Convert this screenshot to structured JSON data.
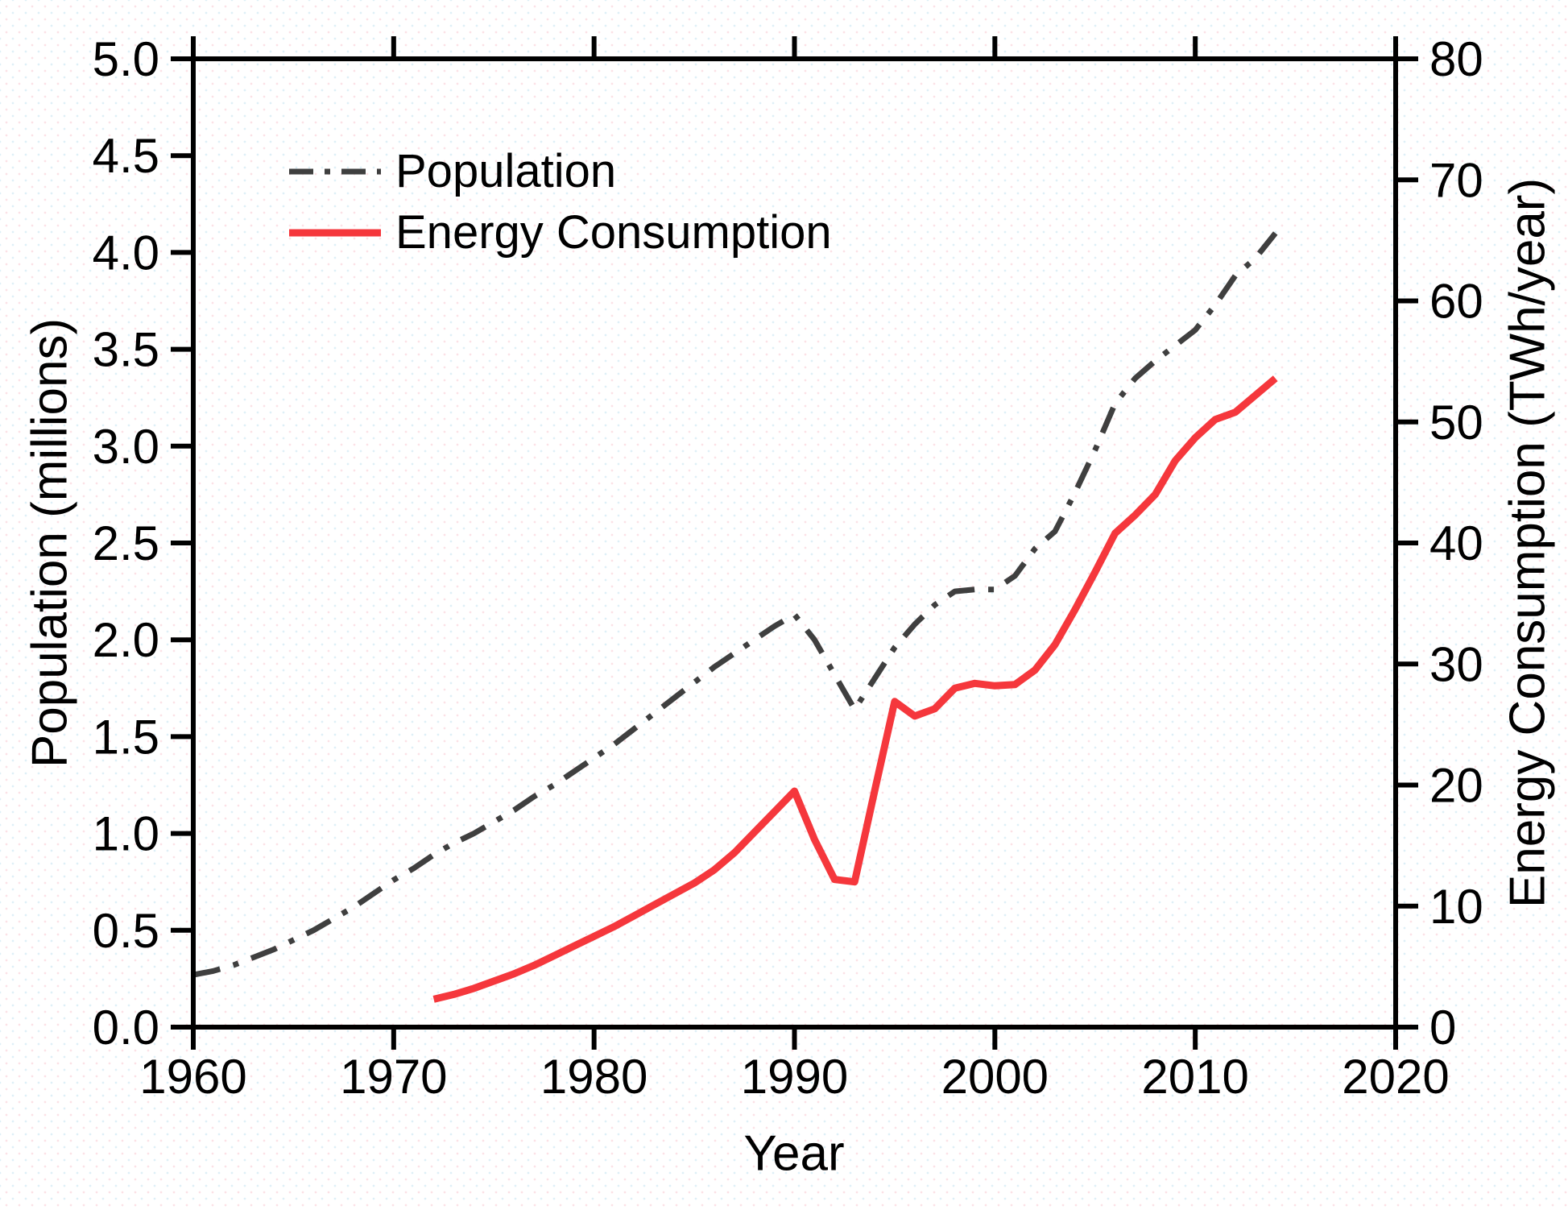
{
  "chart_data": {
    "type": "line",
    "title": "",
    "grid": false,
    "legend_position": "inside-top-left",
    "x_axis": {
      "title": "Year",
      "min": 1960,
      "max": 2020,
      "ticks": [
        {
          "v": 1960,
          "label": "1960"
        },
        {
          "v": 1970,
          "label": "1970"
        },
        {
          "v": 1980,
          "label": "1980"
        },
        {
          "v": 1990,
          "label": "1990"
        },
        {
          "v": 2000,
          "label": "2000"
        },
        {
          "v": 2010,
          "label": "2010"
        },
        {
          "v": 2020,
          "label": "2020"
        }
      ]
    },
    "left_axis": {
      "title": "Population (millions)",
      "min": 0,
      "max": 5,
      "ticks": [
        {
          "v": 0.0,
          "label": "0.0"
        },
        {
          "v": 0.5,
          "label": "0.5"
        },
        {
          "v": 1.0,
          "label": "1.0"
        },
        {
          "v": 1.5,
          "label": "1.5"
        },
        {
          "v": 2.0,
          "label": "2.0"
        },
        {
          "v": 2.5,
          "label": "2.5"
        },
        {
          "v": 3.0,
          "label": "3.0"
        },
        {
          "v": 3.5,
          "label": "3.5"
        },
        {
          "v": 4.0,
          "label": "4.0"
        },
        {
          "v": 4.5,
          "label": "4.5"
        },
        {
          "v": 5.0,
          "label": "5.0"
        }
      ]
    },
    "right_axis": {
      "title": "Energy Consumption (TWh/year)",
      "min": 0,
      "max": 80,
      "ticks": [
        {
          "v": 0,
          "label": "0"
        },
        {
          "v": 10,
          "label": "10"
        },
        {
          "v": 20,
          "label": "20"
        },
        {
          "v": 30,
          "label": "30"
        },
        {
          "v": 40,
          "label": "40"
        },
        {
          "v": 50,
          "label": "50"
        },
        {
          "v": 60,
          "label": "60"
        },
        {
          "v": 70,
          "label": "70"
        },
        {
          "v": 80,
          "label": "80"
        }
      ]
    },
    "series": [
      {
        "name": "Population",
        "axis": "left",
        "color": "#3f3f3f",
        "style": "dash-dot",
        "line_width": 7,
        "points": [
          [
            1960,
            0.27
          ],
          [
            1961,
            0.29
          ],
          [
            1962,
            0.32
          ],
          [
            1963,
            0.36
          ],
          [
            1964,
            0.4
          ],
          [
            1965,
            0.45
          ],
          [
            1966,
            0.5
          ],
          [
            1967,
            0.56
          ],
          [
            1968,
            0.62
          ],
          [
            1969,
            0.69
          ],
          [
            1970,
            0.76
          ],
          [
            1971,
            0.82
          ],
          [
            1972,
            0.89
          ],
          [
            1973,
            0.95
          ],
          [
            1974,
            1.0
          ],
          [
            1975,
            1.06
          ],
          [
            1976,
            1.12
          ],
          [
            1977,
            1.19
          ],
          [
            1978,
            1.25
          ],
          [
            1979,
            1.32
          ],
          [
            1980,
            1.39
          ],
          [
            1981,
            1.46
          ],
          [
            1982,
            1.54
          ],
          [
            1983,
            1.62
          ],
          [
            1984,
            1.7
          ],
          [
            1985,
            1.78
          ],
          [
            1986,
            1.86
          ],
          [
            1987,
            1.93
          ],
          [
            1988,
            2.0
          ],
          [
            1989,
            2.07
          ],
          [
            1990,
            2.13
          ],
          [
            1991,
            2.0
          ],
          [
            1992,
            1.82
          ],
          [
            1993,
            1.64
          ],
          [
            1994,
            1.8
          ],
          [
            1995,
            1.96
          ],
          [
            1996,
            2.08
          ],
          [
            1997,
            2.18
          ],
          [
            1998,
            2.25
          ],
          [
            1999,
            2.26
          ],
          [
            2000,
            2.26
          ],
          [
            2001,
            2.33
          ],
          [
            2002,
            2.47
          ],
          [
            2003,
            2.56
          ],
          [
            2004,
            2.76
          ],
          [
            2005,
            2.98
          ],
          [
            2006,
            3.22
          ],
          [
            2007,
            3.35
          ],
          [
            2008,
            3.44
          ],
          [
            2009,
            3.52
          ],
          [
            2010,
            3.6
          ],
          [
            2011,
            3.73
          ],
          [
            2012,
            3.88
          ],
          [
            2013,
            3.97
          ],
          [
            2014,
            4.1
          ]
        ]
      },
      {
        "name": "Energy Consumption",
        "axis": "right",
        "color": "#f5373c",
        "style": "solid",
        "line_width": 9,
        "points": [
          [
            1972,
            2.3
          ],
          [
            1973,
            2.7
          ],
          [
            1974,
            3.2
          ],
          [
            1975,
            3.8
          ],
          [
            1976,
            4.4
          ],
          [
            1977,
            5.1
          ],
          [
            1978,
            5.9
          ],
          [
            1979,
            6.7
          ],
          [
            1980,
            7.5
          ],
          [
            1981,
            8.3
          ],
          [
            1982,
            9.2
          ],
          [
            1983,
            10.1
          ],
          [
            1984,
            11.0
          ],
          [
            1985,
            11.9
          ],
          [
            1986,
            13.0
          ],
          [
            1987,
            14.4
          ],
          [
            1988,
            16.1
          ],
          [
            1989,
            17.8
          ],
          [
            1990,
            19.5
          ],
          [
            1991,
            15.5
          ],
          [
            1992,
            12.2
          ],
          [
            1993,
            12.0
          ],
          [
            1994,
            19.5
          ],
          [
            1995,
            26.9
          ],
          [
            1996,
            25.7
          ],
          [
            1997,
            26.3
          ],
          [
            1998,
            28.0
          ],
          [
            1999,
            28.4
          ],
          [
            2000,
            28.2
          ],
          [
            2001,
            28.3
          ],
          [
            2002,
            29.5
          ],
          [
            2003,
            31.6
          ],
          [
            2004,
            34.5
          ],
          [
            2005,
            37.6
          ],
          [
            2006,
            40.8
          ],
          [
            2007,
            42.3
          ],
          [
            2008,
            44.0
          ],
          [
            2009,
            46.8
          ],
          [
            2010,
            48.7
          ],
          [
            2011,
            50.2
          ],
          [
            2012,
            50.8
          ],
          [
            2013,
            52.2
          ],
          [
            2014,
            53.6
          ]
        ]
      }
    ],
    "axis_color": "#000000"
  }
}
